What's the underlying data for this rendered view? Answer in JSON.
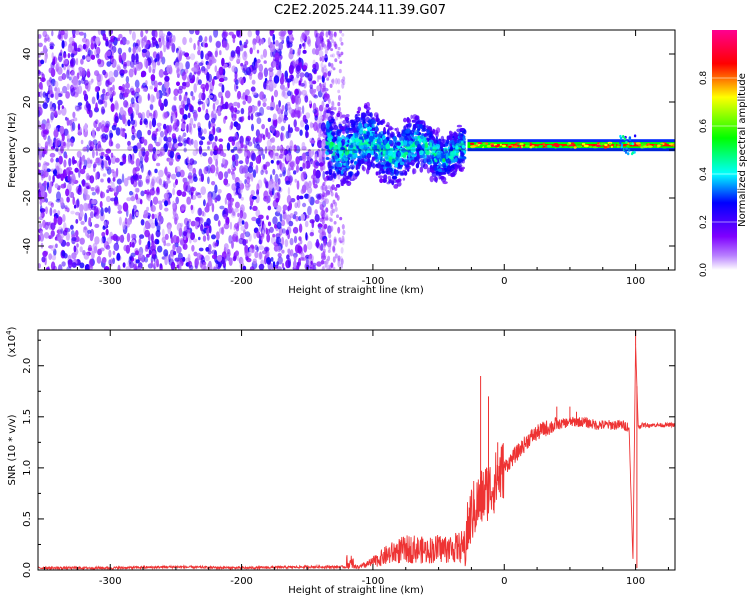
{
  "title": "C2E2.2025.244.11.39.G07",
  "chart_data": [
    {
      "type": "heatmap",
      "xlabel": "Height of straight line (km)",
      "ylabel": "Frequency (Hz)",
      "xlim": [
        -355,
        130
      ],
      "ylim": [
        -50,
        50
      ],
      "xticks": [
        -300,
        -200,
        -100,
        0,
        100
      ],
      "yticks": [
        -40,
        -20,
        0,
        20,
        40
      ],
      "colorbar": {
        "label": "Normalized spectral amplitude",
        "range": [
          0,
          1
        ],
        "ticks": [
          "0.0",
          "0.2",
          "0.4",
          "0.6",
          "0.8"
        ],
        "colors": [
          "#ffffff",
          "#7f00ff",
          "#0000ff",
          "#00ffff",
          "#00ff00",
          "#ffff00",
          "#ff0000",
          "#ff00a0"
        ]
      },
      "regions": [
        {
          "x_range": [
            -355,
            -135
          ],
          "freq_range": [
            -50,
            50
          ],
          "description": "broadband noise, amplitude 0.0-0.25"
        },
        {
          "x_range": [
            -135,
            -30
          ],
          "freq_range": [
            -22,
            18
          ],
          "description": "turbulent signal, amplitude up to 0.5"
        },
        {
          "x_range": [
            -30,
            130
          ],
          "freq_range": [
            -1,
            5
          ],
          "description": "stable tone near 2 Hz, amplitude ~0.9"
        }
      ]
    },
    {
      "type": "line",
      "xlabel": "Height of straight line (km)",
      "ylabel": "SNR (10 * v/v)",
      "yscale_label": "(x10",
      "yscale_exp": "4",
      "yscale_close": ")",
      "xlim": [
        -355,
        130
      ],
      "ylim": [
        0,
        2.35
      ],
      "xticks": [
        -300,
        -200,
        -100,
        0,
        100
      ],
      "yticks": [
        "0.0",
        "0.5",
        "1.0",
        "1.5",
        "2.0"
      ],
      "color": "#ee3333",
      "series": [
        {
          "x": [
            -355,
            -300,
            -250,
            -200,
            -150,
            -110,
            -100,
            -90,
            -80,
            -70,
            -60,
            -50,
            -40,
            -30,
            -25,
            -20,
            -15,
            -10,
            -5,
            0,
            10,
            20,
            30,
            40,
            50,
            60,
            70,
            80,
            90,
            95,
            98,
            100,
            102,
            105,
            110,
            120,
            130
          ],
          "values": [
            0.02,
            0.02,
            0.03,
            0.02,
            0.03,
            0.03,
            0.08,
            0.15,
            0.2,
            0.22,
            0.2,
            0.22,
            0.22,
            0.25,
            0.55,
            0.65,
            0.75,
            0.8,
            0.9,
            1.0,
            1.15,
            1.3,
            1.38,
            1.42,
            1.45,
            1.45,
            1.42,
            1.42,
            1.42,
            1.4,
            0.1,
            2.2,
            1.4,
            1.42,
            1.42,
            1.42,
            1.42
          ],
          "spikes": [
            [
              -18,
              1.9
            ],
            [
              -12,
              1.7
            ],
            [
              -5,
              1.25
            ],
            [
              40,
              1.6
            ],
            [
              50,
              1.6
            ],
            [
              55,
              1.55
            ],
            [
              100,
              2.35
            ],
            [
              101,
              0.02
            ]
          ]
        }
      ]
    }
  ]
}
